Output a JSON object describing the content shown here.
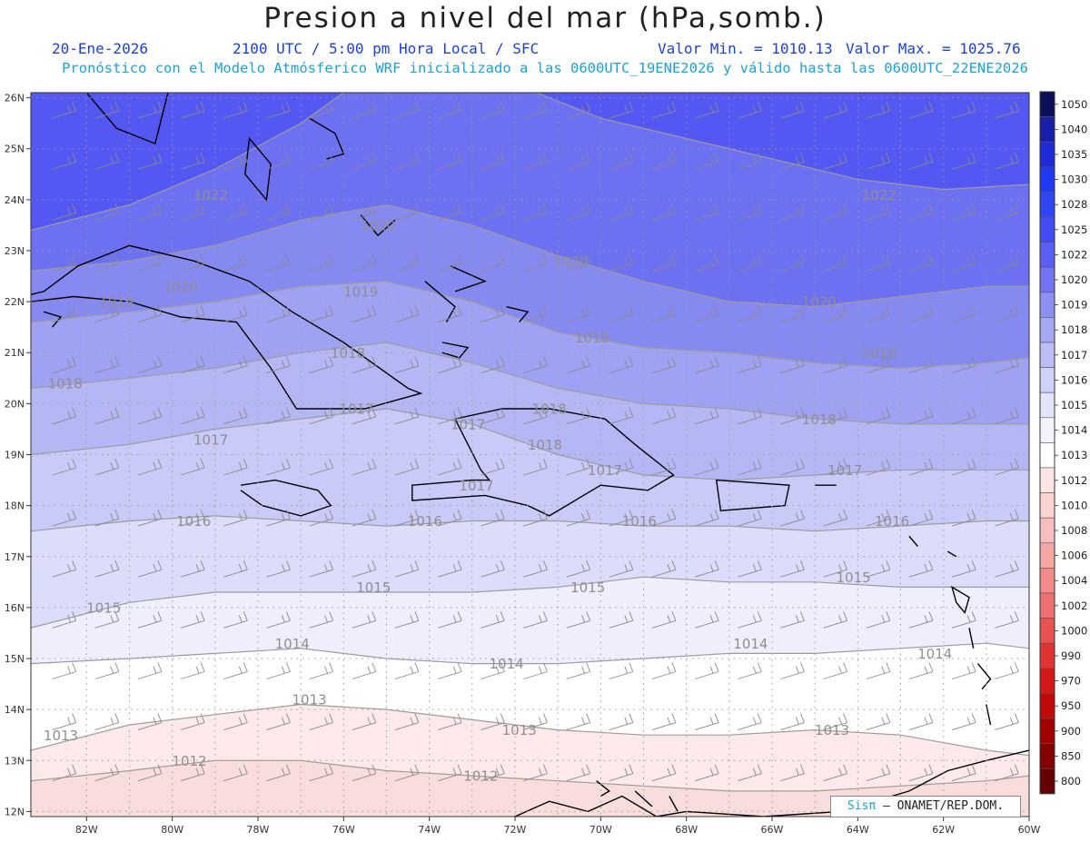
{
  "title": "Presion a nivel del mar (hPa,somb.)",
  "date": "20-Ene-2026",
  "time": "2100 UTC / 5:00 pm Hora Local / SFC",
  "valmin": "Valor Min. = 1010.13",
  "valmax": "Valor Max. = 1025.76",
  "subtitle": "Pronóstico con el Modelo Atmósferico WRF inicializado a las 0600UTC_19ENE2026 y válido hasta las  0600UTC_22ENE2026",
  "credit": {
    "brand": "Sisπ",
    "org": "– ONAMET/REP.DOM."
  },
  "map": {
    "lon_range": [
      -83.3,
      -60.0
    ],
    "lat_range": [
      11.9,
      26.1
    ],
    "lon_ticks": [
      "82W",
      "80W",
      "78W",
      "76W",
      "74W",
      "72W",
      "70W",
      "68W",
      "66W",
      "64W",
      "62W",
      "60W"
    ],
    "lat_ticks": [
      "12N",
      "13N",
      "14N",
      "15N",
      "16N",
      "17N",
      "18N",
      "19N",
      "20N",
      "21N",
      "22N",
      "23N",
      "24N",
      "25N",
      "26N"
    ],
    "contour_labels": [
      {
        "text": "1022",
        "lon": -79.1,
        "lat": 24.0
      },
      {
        "text": "1022",
        "lon": -63.5,
        "lat": 24.0
      },
      {
        "text": "1020",
        "lon": -75.2,
        "lat": 23.4
      },
      {
        "text": "1020",
        "lon": -70.7,
        "lat": 22.7
      },
      {
        "text": "1020",
        "lon": -64.9,
        "lat": 21.9
      },
      {
        "text": "1020",
        "lon": -79.8,
        "lat": 22.2
      },
      {
        "text": "1019",
        "lon": -75.6,
        "lat": 22.1
      },
      {
        "text": "1019",
        "lon": -81.3,
        "lat": 21.9
      },
      {
        "text": "1019",
        "lon": -70.2,
        "lat": 21.2
      },
      {
        "text": "1018",
        "lon": -75.9,
        "lat": 20.9
      },
      {
        "text": "1018",
        "lon": -63.5,
        "lat": 20.9
      },
      {
        "text": "1018",
        "lon": -82.5,
        "lat": 20.3
      },
      {
        "text": "1018",
        "lon": -71.2,
        "lat": 19.8
      },
      {
        "text": "1018",
        "lon": -64.9,
        "lat": 19.6
      },
      {
        "text": "1018",
        "lon": -71.3,
        "lat": 19.1
      },
      {
        "text": "1017",
        "lon": -75.7,
        "lat": 19.8
      },
      {
        "text": "1017",
        "lon": -73.1,
        "lat": 19.5
      },
      {
        "text": "1017",
        "lon": -79.1,
        "lat": 19.2
      },
      {
        "text": "1017",
        "lon": -69.9,
        "lat": 18.6
      },
      {
        "text": "1017",
        "lon": -64.3,
        "lat": 18.6
      },
      {
        "text": "1017",
        "lon": -72.9,
        "lat": 18.3
      },
      {
        "text": "1016",
        "lon": -79.5,
        "lat": 17.6
      },
      {
        "text": "1016",
        "lon": -74.1,
        "lat": 17.6
      },
      {
        "text": "1016",
        "lon": -69.1,
        "lat": 17.6
      },
      {
        "text": "1016",
        "lon": -63.2,
        "lat": 17.6
      },
      {
        "text": "1015",
        "lon": -75.3,
        "lat": 16.3
      },
      {
        "text": "1015",
        "lon": -70.3,
        "lat": 16.3
      },
      {
        "text": "1015",
        "lon": -64.1,
        "lat": 16.5
      },
      {
        "text": "1015",
        "lon": -81.6,
        "lat": 15.9
      },
      {
        "text": "1014",
        "lon": -77.2,
        "lat": 15.2
      },
      {
        "text": "1014",
        "lon": -72.2,
        "lat": 14.8
      },
      {
        "text": "1014",
        "lon": -66.5,
        "lat": 15.2
      },
      {
        "text": "1014",
        "lon": -62.2,
        "lat": 15.0
      },
      {
        "text": "1013",
        "lon": -76.8,
        "lat": 14.1
      },
      {
        "text": "1013",
        "lon": -82.6,
        "lat": 13.4
      },
      {
        "text": "1013",
        "lon": -71.9,
        "lat": 13.5
      },
      {
        "text": "1013",
        "lon": -64.6,
        "lat": 13.5
      },
      {
        "text": "1012",
        "lon": -79.6,
        "lat": 12.9
      },
      {
        "text": "1012",
        "lon": -72.8,
        "lat": 12.6
      }
    ],
    "pressure_bands": [
      {
        "level": "1022",
        "points": [
          [
            -83.3,
            23.4
          ],
          [
            -81,
            23.9
          ],
          [
            -79,
            24.6
          ],
          [
            -77,
            25.5
          ],
          [
            -76,
            26.1
          ]
        ],
        "points_b": [
          [
            -71.5,
            26.1
          ],
          [
            -70,
            25.6
          ],
          [
            -68,
            25.2
          ],
          [
            -66,
            24.8
          ],
          [
            -64,
            24.4
          ],
          [
            -62,
            24.2
          ],
          [
            -60,
            24.3
          ]
        ]
      },
      {
        "level": "1020",
        "points": [
          [
            -83.3,
            22.6
          ],
          [
            -81,
            22.8
          ],
          [
            -79,
            23.1
          ],
          [
            -77,
            23.6
          ],
          [
            -75,
            23.9
          ],
          [
            -73,
            23.5
          ],
          [
            -71,
            22.9
          ],
          [
            -69,
            22.4
          ],
          [
            -67,
            22.0
          ],
          [
            -65,
            21.9
          ],
          [
            -63,
            22.1
          ],
          [
            -61,
            22.3
          ],
          [
            -60,
            22.3
          ]
        ]
      },
      {
        "level": "1019",
        "points": [
          [
            -83.3,
            21.6
          ],
          [
            -81,
            21.8
          ],
          [
            -79,
            22.0
          ],
          [
            -77,
            22.3
          ],
          [
            -75,
            22.4
          ],
          [
            -73,
            22.0
          ],
          [
            -71,
            21.4
          ],
          [
            -69,
            21.1
          ],
          [
            -67,
            21.0
          ],
          [
            -65,
            20.8
          ],
          [
            -63,
            20.7
          ],
          [
            -61,
            20.8
          ],
          [
            -60,
            20.9
          ]
        ]
      },
      {
        "level": "1018",
        "points": [
          [
            -83.3,
            20.3
          ],
          [
            -81,
            20.5
          ],
          [
            -79,
            20.7
          ],
          [
            -77,
            21.0
          ],
          [
            -75,
            21.2
          ],
          [
            -73,
            20.8
          ],
          [
            -71,
            20.3
          ],
          [
            -69,
            20.0
          ],
          [
            -67,
            19.9
          ],
          [
            -65,
            19.7
          ],
          [
            -63,
            19.6
          ],
          [
            -61,
            19.6
          ],
          [
            -60,
            19.6
          ]
        ]
      },
      {
        "level": "1017",
        "points": [
          [
            -83.3,
            19.0
          ],
          [
            -81,
            19.2
          ],
          [
            -79,
            19.5
          ],
          [
            -77,
            19.7
          ],
          [
            -75,
            19.9
          ],
          [
            -73,
            19.6
          ],
          [
            -71,
            19.0
          ],
          [
            -69,
            18.6
          ],
          [
            -67,
            18.5
          ],
          [
            -65,
            18.6
          ],
          [
            -63,
            18.7
          ],
          [
            -61,
            18.7
          ],
          [
            -60,
            18.7
          ]
        ]
      },
      {
        "level": "1016",
        "points": [
          [
            -83.3,
            17.5
          ],
          [
            -81,
            17.7
          ],
          [
            -79,
            17.8
          ],
          [
            -77,
            17.7
          ],
          [
            -75,
            17.6
          ],
          [
            -73,
            17.7
          ],
          [
            -71,
            17.7
          ],
          [
            -69,
            17.6
          ],
          [
            -67,
            17.6
          ],
          [
            -65,
            17.5
          ],
          [
            -63,
            17.6
          ],
          [
            -61,
            17.7
          ],
          [
            -60,
            17.7
          ]
        ]
      },
      {
        "level": "1015",
        "points": [
          [
            -83.3,
            15.6
          ],
          [
            -81,
            16.1
          ],
          [
            -79,
            16.3
          ],
          [
            -77,
            16.3
          ],
          [
            -75,
            16.3
          ],
          [
            -73,
            16.3
          ],
          [
            -71,
            16.4
          ],
          [
            -69,
            16.6
          ],
          [
            -67,
            16.5
          ],
          [
            -65,
            16.5
          ],
          [
            -63,
            16.4
          ],
          [
            -61,
            16.4
          ],
          [
            -60,
            16.4
          ]
        ]
      },
      {
        "level": "1014",
        "points": [
          [
            -83.3,
            14.9
          ],
          [
            -81,
            15.0
          ],
          [
            -79,
            15.1
          ],
          [
            -77,
            15.2
          ],
          [
            -75,
            15.0
          ],
          [
            -73,
            14.9
          ],
          [
            -71,
            14.9
          ],
          [
            -69,
            15.0
          ],
          [
            -67,
            15.1
          ],
          [
            -65,
            15.1
          ],
          [
            -63,
            15.2
          ],
          [
            -61,
            15.3
          ],
          [
            -60,
            15.2
          ]
        ]
      },
      {
        "level": "1013",
        "points": [
          [
            -83.3,
            13.2
          ],
          [
            -81,
            13.7
          ],
          [
            -79,
            13.9
          ],
          [
            -77,
            14.1
          ],
          [
            -75,
            14.0
          ],
          [
            -73,
            13.8
          ],
          [
            -71,
            13.6
          ],
          [
            -69,
            13.5
          ],
          [
            -67,
            13.5
          ],
          [
            -65,
            13.6
          ],
          [
            -63,
            13.5
          ],
          [
            -61,
            13.2
          ],
          [
            -60,
            13.1
          ]
        ]
      },
      {
        "level": "1012",
        "points": [
          [
            -83.3,
            12.6
          ],
          [
            -81,
            12.8
          ],
          [
            -79,
            13.0
          ],
          [
            -77,
            13.0
          ],
          [
            -75,
            12.8
          ],
          [
            -73,
            12.7
          ],
          [
            -71,
            12.6
          ],
          [
            -69,
            12.5
          ],
          [
            -67,
            12.4
          ],
          [
            -65,
            12.4
          ],
          [
            -63,
            12.5
          ],
          [
            -61,
            12.6
          ],
          [
            -60,
            12.7
          ]
        ]
      }
    ],
    "colors": {
      "below_1012": "#f9dcdc",
      "1012": "#fde9e9",
      "1013": "#ffffff",
      "1014": "#eeeefd",
      "1015": "#dcdcfb",
      "1016": "#c9caf7",
      "1017": "#b5b7f5",
      "1018": "#9fa2f2",
      "1019": "#8589f0",
      "1020": "#6e70f2",
      "1022": "#5457f2",
      "contour": "#9c9c9c",
      "coast": "#000000",
      "grid": "#9a9a9a",
      "wind": "#8a8a8a"
    }
  },
  "legend": {
    "levels": [
      "1050",
      "1040",
      "1035",
      "1030",
      "1028",
      "1025",
      "1022",
      "1020",
      "1019",
      "1018",
      "1017",
      "1016",
      "1015",
      "1014",
      "1013",
      "1012",
      "1010",
      "1008",
      "1006",
      "1004",
      "1002",
      "1000",
      "990",
      "970",
      "950",
      "900",
      "850",
      "800"
    ],
    "colors": [
      "#0d0f5a",
      "#1a1fa8",
      "#1f2bd6",
      "#1f3af0",
      "#2f46f2",
      "#434cf3",
      "#5a5ef4",
      "#7275f3",
      "#8d90f1",
      "#a6a8f2",
      "#bcbdf5",
      "#d0d1f8",
      "#e3e3fb",
      "#f3f3fd",
      "#ffffff",
      "#fde6e6",
      "#fbd3d3",
      "#f8bdbd",
      "#f6a5a5",
      "#f28c8c",
      "#ee7070",
      "#e85252",
      "#e03333",
      "#d41818",
      "#c00a0a",
      "#a20000",
      "#850000",
      "#640000"
    ]
  }
}
